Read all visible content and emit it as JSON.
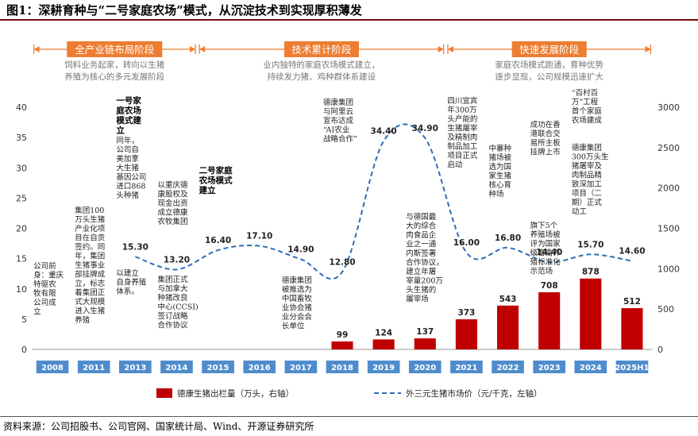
{
  "title": "图1：深耕育种与“二号家庭农场”模式，从沉淀技术到实现厚积薄发",
  "source": "资料来源：公司招股书、公司官网、国家统计局、Wind、开源证券研究所",
  "phases": [
    {
      "label": "全产业链布局阶段",
      "desc": [
        "饲料业务起家，转向以生猪",
        "养殖为核心的多元发展阶段"
      ]
    },
    {
      "label": "技术累计阶段",
      "desc": [
        "业内独特的家庭农场模式建立，",
        "持续发力猪、鸡种群体系建设"
      ]
    },
    {
      "label": "快速发展阶段",
      "desc": [
        "家庭农场模式跑通，育种优势",
        "逐步显现，公司规模迅速扩大"
      ]
    }
  ],
  "colors": {
    "bar": "#c00000",
    "line": "#2e6db4",
    "phase": "#ee7d31",
    "year_box": "#4f8ccc"
  },
  "chart_data": {
    "type": "bar+line",
    "categories": [
      "2008",
      "2011",
      "2013",
      "2014",
      "2015",
      "2016",
      "2017",
      "2018",
      "2019",
      "2020",
      "2021",
      "2022",
      "2023",
      "2024",
      "2025H1"
    ],
    "series": [
      {
        "name": "德康生猪出栏量（万头，右轴）",
        "type": "bar",
        "axis": "right",
        "values": [
          null,
          null,
          null,
          null,
          null,
          null,
          null,
          99,
          124,
          137,
          373,
          543,
          708,
          878,
          512
        ]
      },
      {
        "name": "外三元生猪市场价（元/千克，左轴）",
        "type": "line",
        "axis": "left",
        "values": [
          null,
          null,
          15.3,
          13.2,
          16.4,
          17.1,
          14.9,
          12.8,
          34.4,
          34.9,
          16.0,
          16.8,
          14.4,
          15.7,
          14.6
        ]
      }
    ],
    "bar_labels": [
      "",
      "",
      "",
      "",
      "",
      "",
      "",
      "99",
      "124",
      "137",
      "373",
      "543",
      "708",
      "878",
      "512"
    ],
    "line_labels": [
      "",
      "",
      "15.30",
      "13.20",
      "16.40",
      "17.10",
      "14.90",
      "12.80",
      "34.40",
      "34.90",
      "16.00",
      "16.80",
      "14.40",
      "15.70",
      "14.60"
    ],
    "left_axis": {
      "ylim": [
        0,
        40
      ],
      "ticks": [
        "0",
        "5",
        "10",
        "15",
        "20",
        "25",
        "30",
        "35",
        "40"
      ]
    },
    "right_axis": {
      "ylim": [
        0,
        3000
      ],
      "ticks": [
        "0",
        "500",
        "1000",
        "1500",
        "2000",
        "2500",
        "3000"
      ]
    },
    "legend_position": "bottom",
    "annotations": [
      {
        "year": "2008",
        "lines": [
          "公司前",
          "身：重庆",
          "特驱农",
          "牧有限",
          "公司成",
          "立"
        ]
      },
      {
        "year": "2011",
        "lines": [
          "集团100",
          "万头生猪",
          "产业化项",
          "目在自贡",
          "签约。同",
          "年，集团",
          "生猪事业",
          "部挂牌成",
          "立，标志",
          "着集团正",
          "式大规模",
          "进入生猪",
          "养殖"
        ]
      },
      {
        "year": "2013",
        "bold": [
          "一号家",
          "庭农场",
          "模式建",
          "立"
        ],
        "lines": [
          "同年，",
          "公司自",
          "美加拿",
          "大生猪",
          "基因公司",
          "进口868",
          "头种猪"
        ],
        "extra": [
          "以建立",
          "自身养殖",
          "体系。"
        ]
      },
      {
        "year": "2014",
        "lines": [
          "以重庆德",
          "康股权及",
          "现金出资",
          "成立德康",
          "农牧集团"
        ],
        "extra": [
          "集团正式",
          "与加拿大",
          "种猪改良",
          "中心(CCSI)",
          "签订战略",
          "合作协议"
        ]
      },
      {
        "year": "2015",
        "bold": [
          "二号家庭",
          "农场模式",
          "建立"
        ]
      },
      {
        "year": "2017",
        "lines": [
          "德康集团",
          "被推选为",
          "中国畜牧",
          "业协会猪",
          "业分会会",
          "长单位"
        ]
      },
      {
        "year": "2018",
        "lines": [
          "德康集团",
          "与阿里云",
          "宣布达成",
          "“AI农业",
          "战略合作”"
        ]
      },
      {
        "year": "2020",
        "lines": [
          "与德国最",
          "大的综合",
          "肉食品企",
          "业之一通",
          "内斯签署",
          "合作协议，",
          "建立年屠",
          "宰量200万",
          "头生猪的",
          "屠宰场"
        ]
      },
      {
        "year": "2021",
        "lines": [
          "四川宜宾",
          "年300万",
          "头产能的",
          "生猪屠宰",
          "及精制肉",
          "制品加工",
          "项目正式",
          "启动"
        ]
      },
      {
        "year": "2022",
        "lines": [
          "中寨种",
          "猪场被",
          "选为国",
          "家生猪",
          "核心育",
          "种场"
        ]
      },
      {
        "year": "2023",
        "lines": [
          "成功在香",
          "港联合交",
          "易所主板",
          "挂牌上市"
        ],
        "extra": [
          "旗下5个",
          "养殖场被",
          "评为国家",
          "级畜禽养",
          "殖标准化",
          "示范场"
        ]
      },
      {
        "year": "2024",
        "lines": [
          "“百村百",
          "万”工程",
          "首个家庭",
          "农场建成"
        ],
        "extra": [
          "德康集团",
          "300万头生",
          "猪屠宰及",
          "肉制品精",
          "致深加工",
          "项目（二",
          "期）正式",
          "动工"
        ]
      }
    ]
  }
}
